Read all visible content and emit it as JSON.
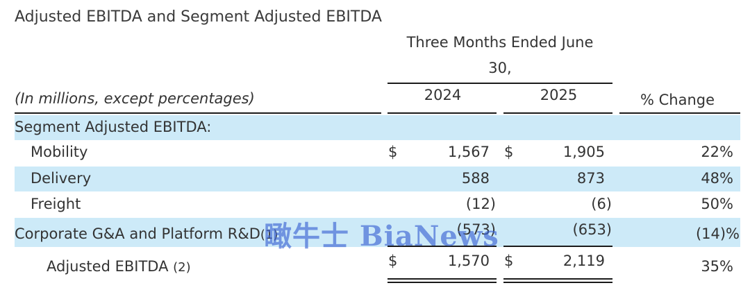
{
  "title": "Adjusted EBITDA and Segment Adjusted EBITDA",
  "header": {
    "period_line1": "Three Months Ended June",
    "period_line2": "30,",
    "units_note": "(In millions, except percentages)",
    "year1": "2024",
    "year2": "2025",
    "pct_change": "% Change"
  },
  "rows": [
    {
      "label": "Segment Adjusted EBITDA:",
      "cur1": "",
      "v2024": "",
      "cur2": "",
      "v2025": "",
      "pct": ""
    },
    {
      "label": "Mobility",
      "cur1": "$",
      "v2024": "1,567",
      "cur2": "$",
      "v2025": "1,905",
      "pct": "22%"
    },
    {
      "label": "Delivery",
      "cur1": "",
      "v2024": "588",
      "cur2": "",
      "v2025": "873",
      "pct": "48%"
    },
    {
      "label": "Freight",
      "cur1": "",
      "v2024": "(12)",
      "cur2": "",
      "v2025": "(6)",
      "pct": "50%"
    },
    {
      "label": "Corporate G&A and Platform R&D",
      "note": "(1)",
      "cur1": "",
      "v2024": "(573)",
      "cur2": "",
      "v2025": "(653)",
      "pct": "(14)%"
    },
    {
      "label": "Adjusted EBITDA",
      "note": "(2)",
      "cur1": "$",
      "v2024": "1,570",
      "cur2": "$",
      "v2025": "2,119",
      "pct": "35%"
    }
  ],
  "watermark": "瞰牛士 BiaNews",
  "colors": {
    "band": "#cdeaf8",
    "text": "#333333",
    "watermark": "#3c64d2"
  }
}
